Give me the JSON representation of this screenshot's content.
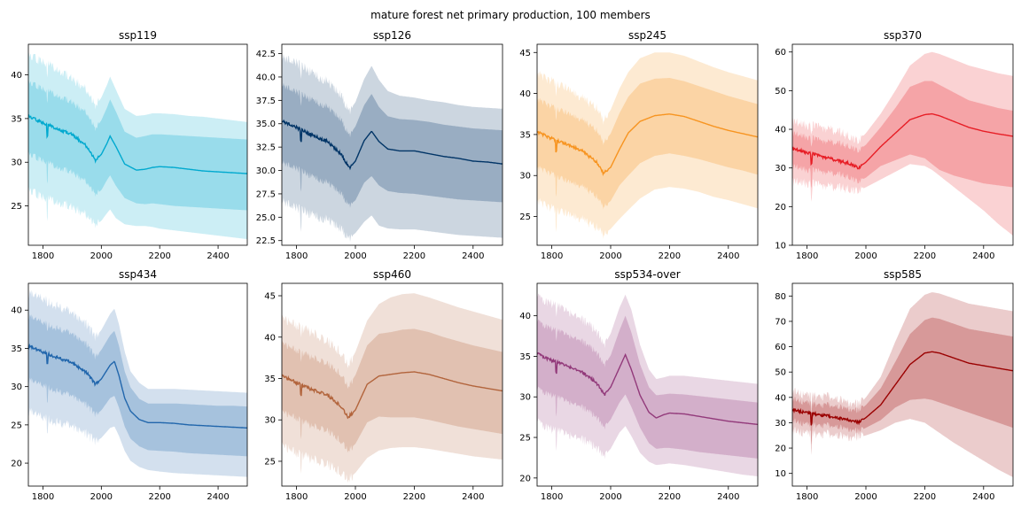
{
  "figure": {
    "title": "mature forest net primary production, 100 members"
  },
  "chart_data": [
    {
      "type": "area",
      "title": "ssp119",
      "color": "#00a9cf",
      "xlim": [
        1750,
        2500
      ],
      "ylim": [
        20.5,
        43.5
      ],
      "xticks": [
        1800,
        2000,
        2200,
        2400
      ],
      "yticks": [
        25,
        30,
        35,
        40
      ],
      "x": [
        1750,
        1800,
        1850,
        1900,
        1950,
        1980,
        2000,
        2020,
        2030,
        2050,
        2080,
        2120,
        2150,
        2175,
        2200,
        2250,
        2300,
        2350,
        2400,
        2450,
        2500
      ],
      "median": [
        35.3,
        34.5,
        33.8,
        33.2,
        31.8,
        30.2,
        30.9,
        32.2,
        33.0,
        31.8,
        29.8,
        29.1,
        29.2,
        29.4,
        29.5,
        29.4,
        29.2,
        29.0,
        28.9,
        28.8,
        28.7
      ],
      "p05": [
        26.9,
        26.0,
        25.4,
        24.9,
        23.9,
        22.8,
        23.3,
        24.2,
        24.6,
        23.6,
        22.9,
        22.7,
        22.7,
        22.6,
        22.4,
        22.2,
        22.0,
        21.8,
        21.6,
        21.4,
        21.2
      ],
      "p95": [
        42.3,
        41.5,
        40.6,
        39.6,
        38.2,
        36.4,
        37.4,
        38.9,
        39.8,
        38.3,
        36.1,
        35.3,
        35.4,
        35.6,
        35.6,
        35.5,
        35.3,
        35.2,
        35.0,
        34.8,
        34.6
      ],
      "p17": [
        31.0,
        30.2,
        29.4,
        28.9,
        27.7,
        26.3,
        26.8,
        28.0,
        28.5,
        27.3,
        25.9,
        25.3,
        25.2,
        25.3,
        25.2,
        25.0,
        24.9,
        24.8,
        24.7,
        24.6,
        24.5
      ],
      "p83": [
        39.2,
        38.4,
        37.6,
        36.9,
        35.6,
        33.8,
        34.8,
        36.3,
        37.2,
        35.8,
        33.5,
        32.8,
        33.0,
        33.2,
        33.2,
        33.1,
        33.0,
        32.9,
        32.8,
        32.7,
        32.6
      ]
    },
    {
      "type": "area",
      "title": "ssp126",
      "color": "#003466",
      "xlim": [
        1750,
        2500
      ],
      "ylim": [
        22,
        43.5
      ],
      "xticks": [
        1800,
        2000,
        2200,
        2400
      ],
      "yticks": [
        22.5,
        25.0,
        27.5,
        30.0,
        32.5,
        35.0,
        37.5,
        40.0,
        42.5
      ],
      "x": [
        1750,
        1800,
        1850,
        1900,
        1950,
        1980,
        2000,
        2030,
        2055,
        2080,
        2110,
        2150,
        2200,
        2250,
        2300,
        2350,
        2400,
        2450,
        2500
      ],
      "median": [
        35.3,
        34.6,
        33.8,
        33.2,
        31.8,
        30.3,
        31.0,
        33.2,
        34.2,
        33.1,
        32.3,
        32.1,
        32.1,
        31.8,
        31.5,
        31.3,
        31.0,
        30.9,
        30.7
      ],
      "p05": [
        26.8,
        26.0,
        25.3,
        24.8,
        23.8,
        22.8,
        23.3,
        24.5,
        25.2,
        24.1,
        23.8,
        23.7,
        23.7,
        23.5,
        23.3,
        23.1,
        23.0,
        22.9,
        22.8
      ],
      "p95": [
        42.2,
        41.5,
        40.5,
        39.6,
        38.1,
        36.4,
        37.3,
        39.8,
        41.2,
        39.7,
        38.5,
        38.0,
        37.8,
        37.5,
        37.3,
        37.0,
        36.8,
        36.7,
        36.6
      ],
      "p17": [
        30.9,
        30.2,
        29.4,
        28.8,
        27.6,
        26.3,
        26.8,
        28.7,
        29.4,
        28.4,
        27.8,
        27.6,
        27.5,
        27.3,
        27.1,
        26.9,
        26.8,
        26.7,
        26.6
      ],
      "p83": [
        39.2,
        38.4,
        37.6,
        36.9,
        35.5,
        33.8,
        34.7,
        37.0,
        38.2,
        36.8,
        35.8,
        35.5,
        35.4,
        35.2,
        34.9,
        34.7,
        34.5,
        34.4,
        34.3
      ]
    },
    {
      "type": "area",
      "title": "ssp245",
      "color": "#f79420",
      "xlim": [
        1750,
        2500
      ],
      "ylim": [
        21.5,
        46
      ],
      "xticks": [
        1800,
        2000,
        2200,
        2400
      ],
      "yticks": [
        25,
        30,
        35,
        40,
        45
      ],
      "x": [
        1750,
        1800,
        1850,
        1900,
        1950,
        1975,
        2000,
        2030,
        2060,
        2100,
        2150,
        2200,
        2250,
        2300,
        2350,
        2400,
        2450,
        2500
      ],
      "median": [
        35.3,
        34.5,
        33.8,
        33.1,
        31.7,
        30.3,
        31.0,
        33.2,
        35.2,
        36.6,
        37.3,
        37.5,
        37.2,
        36.6,
        36.0,
        35.5,
        35.1,
        34.7
      ],
      "p05": [
        26.8,
        26.0,
        25.3,
        24.8,
        23.7,
        22.8,
        23.5,
        24.7,
        25.8,
        27.2,
        28.3,
        28.6,
        28.4,
        28.0,
        27.4,
        27.0,
        26.5,
        26.0
      ],
      "p95": [
        42.3,
        41.5,
        40.6,
        39.6,
        38.3,
        36.7,
        38.0,
        40.6,
        42.6,
        44.3,
        45.0,
        45.0,
        44.6,
        43.9,
        43.2,
        42.6,
        42.1,
        41.6
      ],
      "p17": [
        30.9,
        30.2,
        29.3,
        28.8,
        27.5,
        26.2,
        26.9,
        28.8,
        30.0,
        31.5,
        32.4,
        32.7,
        32.4,
        32.0,
        31.5,
        31.0,
        30.6,
        30.1
      ],
      "p83": [
        39.2,
        38.4,
        37.6,
        36.9,
        35.6,
        34.0,
        35.1,
        37.6,
        39.6,
        41.2,
        41.8,
        41.9,
        41.5,
        40.9,
        40.3,
        39.7,
        39.2,
        38.7
      ]
    },
    {
      "type": "area",
      "title": "ssp370",
      "color": "#e71d25",
      "xlim": [
        1750,
        2500
      ],
      "ylim": [
        10,
        62
      ],
      "xticks": [
        1800,
        2000,
        2200,
        2400
      ],
      "yticks": [
        10,
        20,
        30,
        40,
        50,
        60
      ],
      "x": [
        1750,
        1800,
        1850,
        1900,
        1950,
        1975,
        2000,
        2050,
        2100,
        2150,
        2200,
        2225,
        2250,
        2300,
        2350,
        2400,
        2450,
        2500
      ],
      "median": [
        35.0,
        34.0,
        33.0,
        32.0,
        31.0,
        30.0,
        31.5,
        35.5,
        39.0,
        42.5,
        43.8,
        44.0,
        43.5,
        42.0,
        40.5,
        39.5,
        38.8,
        38.2
      ],
      "p05": [
        26.5,
        26.0,
        25.5,
        25.0,
        24.5,
        24.2,
        25.0,
        27.0,
        29.0,
        31.0,
        30.5,
        29.5,
        28.0,
        25.0,
        22.0,
        19.0,
        15.5,
        12.5
      ],
      "p95": [
        42.0,
        41.0,
        40.5,
        39.5,
        38.0,
        37.0,
        39.0,
        44.0,
        50.0,
        56.5,
        59.5,
        60.0,
        59.5,
        58.0,
        56.5,
        55.5,
        54.5,
        53.8
      ],
      "p17": [
        30.5,
        29.5,
        29.0,
        28.5,
        27.5,
        26.5,
        27.5,
        30.5,
        32.0,
        33.5,
        32.5,
        31.0,
        29.5,
        28.0,
        27.0,
        26.0,
        25.5,
        25.0
      ],
      "p83": [
        39.0,
        38.0,
        37.0,
        36.5,
        35.5,
        34.5,
        36.0,
        40.5,
        45.5,
        51.0,
        52.5,
        52.5,
        51.5,
        49.5,
        47.5,
        46.5,
        45.5,
        44.8
      ]
    },
    {
      "type": "area",
      "title": "ssp434",
      "color": "#2166ac",
      "xlim": [
        1750,
        2500
      ],
      "ylim": [
        17,
        43.5
      ],
      "xticks": [
        1800,
        2000,
        2200,
        2400
      ],
      "yticks": [
        20,
        25,
        30,
        35,
        40
      ],
      "x": [
        1750,
        1800,
        1850,
        1900,
        1950,
        1980,
        2000,
        2030,
        2045,
        2060,
        2080,
        2100,
        2130,
        2160,
        2200,
        2250,
        2300,
        2350,
        2400,
        2450,
        2500
      ],
      "median": [
        35.3,
        34.5,
        33.8,
        33.1,
        31.8,
        30.3,
        31.0,
        32.8,
        33.3,
        31.5,
        28.5,
        26.8,
        25.7,
        25.3,
        25.3,
        25.2,
        25.0,
        24.9,
        24.8,
        24.7,
        24.6
      ],
      "p05": [
        26.8,
        26.0,
        25.3,
        24.8,
        23.8,
        22.8,
        23.3,
        24.6,
        24.8,
        23.6,
        21.6,
        20.3,
        19.5,
        19.1,
        18.9,
        18.7,
        18.6,
        18.5,
        18.4,
        18.3,
        18.2
      ],
      "p95": [
        42.2,
        41.5,
        40.5,
        39.6,
        38.1,
        36.4,
        37.4,
        39.5,
        40.2,
        38.2,
        34.6,
        32.0,
        30.5,
        29.7,
        29.7,
        29.7,
        29.6,
        29.5,
        29.4,
        29.3,
        29.2
      ],
      "p17": [
        30.9,
        30.2,
        29.4,
        28.8,
        27.6,
        26.3,
        26.9,
        28.5,
        28.8,
        27.3,
        24.8,
        23.2,
        22.2,
        21.7,
        21.6,
        21.5,
        21.3,
        21.2,
        21.1,
        21.0,
        20.9
      ],
      "p83": [
        39.2,
        38.4,
        37.6,
        36.9,
        35.5,
        33.8,
        34.8,
        36.7,
        37.3,
        35.4,
        32.0,
        29.9,
        28.4,
        27.8,
        27.8,
        27.8,
        27.7,
        27.6,
        27.5,
        27.5,
        27.4
      ]
    },
    {
      "type": "area",
      "title": "ssp460",
      "color": "#b2643c",
      "xlim": [
        1750,
        2500
      ],
      "ylim": [
        22,
        46.5
      ],
      "xticks": [
        1800,
        2000,
        2200,
        2400
      ],
      "yticks": [
        25,
        30,
        35,
        40,
        45
      ],
      "x": [
        1750,
        1800,
        1850,
        1900,
        1950,
        1975,
        2000,
        2040,
        2080,
        2120,
        2160,
        2200,
        2250,
        2300,
        2350,
        2400,
        2450,
        2500
      ],
      "median": [
        35.3,
        34.5,
        33.7,
        33.1,
        31.7,
        30.3,
        31.2,
        34.3,
        35.3,
        35.5,
        35.7,
        35.8,
        35.5,
        35.0,
        34.5,
        34.1,
        33.8,
        33.5
      ],
      "p05": [
        26.8,
        26.0,
        25.3,
        24.7,
        23.7,
        22.8,
        23.6,
        25.4,
        26.3,
        26.6,
        26.7,
        26.7,
        26.5,
        26.2,
        25.9,
        25.6,
        25.4,
        25.2
      ],
      "p95": [
        42.2,
        41.4,
        40.6,
        39.6,
        38.2,
        36.6,
        38.2,
        42.0,
        44.0,
        44.8,
        45.2,
        45.3,
        44.8,
        44.2,
        43.6,
        43.1,
        42.6,
        42.1
      ],
      "p17": [
        30.9,
        30.2,
        29.3,
        28.8,
        27.5,
        26.3,
        27.1,
        29.7,
        30.4,
        30.3,
        30.3,
        30.3,
        30.0,
        29.6,
        29.2,
        28.9,
        28.6,
        28.3
      ],
      "p83": [
        39.2,
        38.4,
        37.6,
        36.9,
        35.6,
        34.0,
        35.4,
        39.0,
        40.4,
        40.6,
        40.9,
        41.0,
        40.6,
        40.0,
        39.5,
        39.0,
        38.6,
        38.2
      ]
    },
    {
      "type": "area",
      "title": "ssp534-over",
      "color": "#92397a",
      "xlim": [
        1750,
        2500
      ],
      "ylim": [
        19,
        44
      ],
      "xticks": [
        1800,
        2000,
        2200,
        2400
      ],
      "yticks": [
        20,
        25,
        30,
        35,
        40
      ],
      "x": [
        1750,
        1800,
        1850,
        1900,
        1950,
        1980,
        2000,
        2030,
        2050,
        2070,
        2100,
        2130,
        2155,
        2180,
        2200,
        2250,
        2300,
        2350,
        2400,
        2450,
        2500
      ],
      "median": [
        35.3,
        34.5,
        33.8,
        33.1,
        31.8,
        30.3,
        31.2,
        33.6,
        35.2,
        33.4,
        30.2,
        28.1,
        27.4,
        27.8,
        28.0,
        27.9,
        27.6,
        27.3,
        27.0,
        26.8,
        26.6
      ],
      "p05": [
        26.8,
        26.0,
        25.3,
        24.8,
        23.8,
        22.8,
        23.6,
        25.6,
        26.4,
        25.2,
        23.1,
        22.0,
        21.6,
        21.7,
        21.8,
        21.6,
        21.3,
        21.0,
        20.7,
        20.4,
        20.2
      ],
      "p95": [
        42.2,
        41.5,
        40.5,
        39.6,
        38.2,
        36.5,
        37.8,
        41.0,
        42.6,
        40.8,
        36.4,
        33.4,
        32.2,
        32.4,
        32.6,
        32.6,
        32.4,
        32.2,
        32.0,
        31.8,
        31.6
      ],
      "p17": [
        30.9,
        30.2,
        29.4,
        28.8,
        27.6,
        26.3,
        27.2,
        29.3,
        30.3,
        28.8,
        26.2,
        24.3,
        23.6,
        23.7,
        23.7,
        23.5,
        23.2,
        23.0,
        22.8,
        22.6,
        22.4
      ],
      "p83": [
        39.2,
        38.4,
        37.6,
        36.9,
        35.6,
        34.0,
        35.1,
        38.2,
        40.0,
        38.0,
        34.0,
        31.2,
        30.2,
        30.3,
        30.4,
        30.3,
        30.1,
        29.9,
        29.7,
        29.5,
        29.3
      ]
    },
    {
      "type": "area",
      "title": "ssp585",
      "color": "#9a0000",
      "xlim": [
        1750,
        2500
      ],
      "ylim": [
        5,
        85
      ],
      "xticks": [
        1800,
        2000,
        2200,
        2400
      ],
      "yticks": [
        10,
        20,
        30,
        40,
        50,
        60,
        70,
        80
      ],
      "x": [
        1750,
        1800,
        1850,
        1900,
        1950,
        1975,
        2000,
        2050,
        2100,
        2150,
        2200,
        2225,
        2250,
        2300,
        2350,
        2400,
        2450,
        2500
      ],
      "median": [
        35.0,
        34.0,
        33.0,
        32.0,
        31.0,
        30.0,
        32.0,
        37.0,
        45.0,
        53.0,
        57.5,
        58.0,
        57.5,
        55.5,
        53.5,
        52.5,
        51.5,
        50.5
      ],
      "p05": [
        26.5,
        26.0,
        25.5,
        25.0,
        24.5,
        24.2,
        25.0,
        27.0,
        30.0,
        31.5,
        30.0,
        28.0,
        26.0,
        22.0,
        18.5,
        15.0,
        11.5,
        8.5
      ],
      "p95": [
        42.0,
        41.0,
        40.5,
        39.5,
        38.0,
        37.0,
        40.0,
        48.0,
        62.0,
        75.0,
        80.5,
        81.5,
        81.0,
        79.0,
        77.0,
        76.0,
        75.0,
        74.0
      ],
      "p17": [
        30.5,
        29.5,
        29.0,
        28.5,
        27.5,
        26.5,
        28.0,
        31.0,
        36.0,
        39.0,
        39.5,
        39.0,
        38.0,
        36.0,
        34.0,
        32.0,
        30.0,
        28.0
      ],
      "p83": [
        39.0,
        38.0,
        37.0,
        36.5,
        35.5,
        34.5,
        37.0,
        43.5,
        54.0,
        65.0,
        70.5,
        71.5,
        71.0,
        69.0,
        67.0,
        66.0,
        65.0,
        64.0
      ]
    }
  ]
}
